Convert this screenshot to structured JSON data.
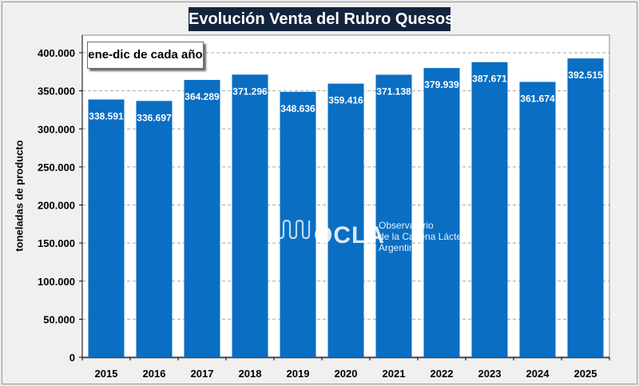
{
  "title": "Evolución Venta del Rubro Quesos",
  "note": "ene-dic de cada año",
  "logo": {
    "name": "OCLA",
    "line1": "Observatorio",
    "line2": "de la Cadena Láctea",
    "line3": "Argentina"
  },
  "colors": {
    "bar": "#0a6ec3",
    "title_bg": "#14243c",
    "grid": "#a6a6a6"
  },
  "chart_data": {
    "type": "bar",
    "title": "Evolución Venta del Rubro Quesos",
    "xlabel": "",
    "ylabel": "toneladas de producto",
    "ylim": [
      0,
      400000
    ],
    "yticks": [
      0,
      50000,
      100000,
      150000,
      200000,
      250000,
      300000,
      350000,
      400000
    ],
    "ytick_labels": [
      "0",
      "50.000",
      "100.000",
      "150.000",
      "200.000",
      "250.000",
      "300.000",
      "350.000",
      "400.000"
    ],
    "categories": [
      "2015",
      "2016",
      "2017",
      "2018",
      "2019",
      "2020",
      "2021",
      "2022",
      "2023",
      "2024",
      "2025"
    ],
    "values": [
      338591,
      336697,
      364289,
      371296,
      348636,
      359416,
      371138,
      379939,
      387671,
      361674,
      392515
    ],
    "value_labels": [
      "338.591",
      "336.697",
      "364.289",
      "371.296",
      "348.636",
      "359.416",
      "371.138",
      "379.939",
      "387.671",
      "361.674",
      "392.515"
    ],
    "grid": true,
    "legend": "none"
  }
}
